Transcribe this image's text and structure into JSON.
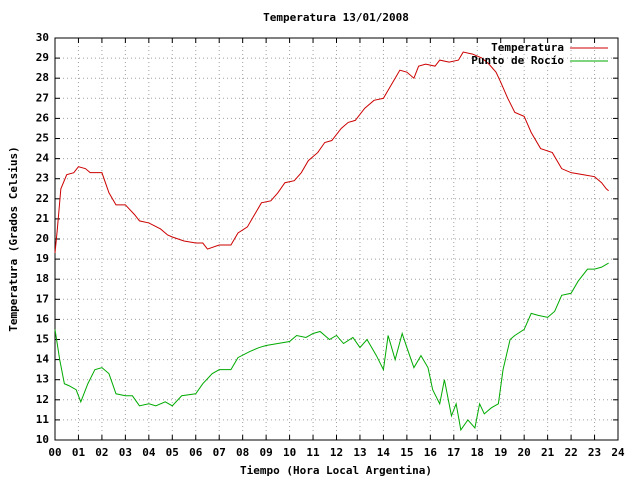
{
  "chart_data": {
    "type": "line",
    "title": "Temperatura 13/01/2008",
    "xlabel": "Tiempo (Hora Local Argentina)",
    "ylabel": "Temperatura (Grados Celsius)",
    "xlim": [
      0,
      24
    ],
    "ylim": [
      10,
      30
    ],
    "xticks": [
      {
        "value": 0,
        "label": "00"
      },
      {
        "value": 1,
        "label": "01"
      },
      {
        "value": 2,
        "label": "02"
      },
      {
        "value": 3,
        "label": "03"
      },
      {
        "value": 4,
        "label": "04"
      },
      {
        "value": 5,
        "label": "05"
      },
      {
        "value": 6,
        "label": "06"
      },
      {
        "value": 7,
        "label": "07"
      },
      {
        "value": 8,
        "label": "08"
      },
      {
        "value": 9,
        "label": "09"
      },
      10,
      11,
      12,
      13,
      14,
      15,
      16,
      17,
      18,
      19,
      20,
      21,
      22,
      23,
      24
    ],
    "yticks": [
      10,
      11,
      12,
      13,
      14,
      15,
      16,
      17,
      18,
      19,
      20,
      21,
      22,
      23,
      24,
      25,
      26,
      27,
      28,
      29,
      30
    ],
    "grid": true,
    "legend": "upper right",
    "series": [
      {
        "name": "Temperatura",
        "color": "#cc0000",
        "x": [
          0.0,
          0.1,
          0.25,
          0.5,
          0.8,
          1.0,
          1.3,
          1.5,
          2.0,
          2.3,
          2.6,
          3.0,
          3.4,
          3.6,
          4.0,
          4.5,
          4.8,
          5.0,
          5.5,
          6.0,
          6.3,
          6.5,
          7.0,
          7.5,
          7.8,
          8.2,
          8.5,
          8.8,
          9.2,
          9.5,
          9.8,
          10.2,
          10.5,
          10.8,
          11.2,
          11.5,
          11.8,
          12.2,
          12.5,
          12.8,
          13.2,
          13.6,
          14.0,
          14.2,
          14.5,
          14.7,
          15.0,
          15.3,
          15.5,
          15.8,
          16.2,
          16.4,
          16.8,
          17.2,
          17.4,
          17.8,
          18.2,
          18.5,
          18.8,
          19.0,
          19.3,
          19.6,
          20.0,
          20.3,
          20.7,
          21.2,
          21.6,
          22.0,
          22.5,
          23.0,
          23.3,
          23.5,
          23.6
        ],
        "values": [
          19.3,
          20.5,
          22.5,
          23.2,
          23.3,
          23.6,
          23.5,
          23.3,
          23.3,
          22.3,
          21.7,
          21.7,
          21.2,
          20.9,
          20.8,
          20.5,
          20.2,
          20.1,
          19.9,
          19.8,
          19.8,
          19.5,
          19.7,
          19.7,
          20.3,
          20.6,
          21.2,
          21.8,
          21.9,
          22.3,
          22.8,
          22.9,
          23.3,
          23.9,
          24.3,
          24.8,
          24.9,
          25.5,
          25.8,
          25.9,
          26.5,
          26.9,
          27.0,
          27.4,
          28.0,
          28.4,
          28.3,
          28.0,
          28.6,
          28.7,
          28.6,
          28.9,
          28.8,
          28.9,
          29.3,
          29.2,
          29.0,
          28.7,
          28.3,
          27.8,
          27.0,
          26.3,
          26.1,
          25.3,
          24.5,
          24.3,
          23.5,
          23.3,
          23.2,
          23.1,
          22.8,
          22.5,
          22.4
        ]
      },
      {
        "name": "Punto de Rocío",
        "color": "#00aa00",
        "x": [
          0.0,
          0.2,
          0.4,
          0.6,
          0.9,
          1.1,
          1.4,
          1.7,
          2.0,
          2.3,
          2.6,
          3.0,
          3.3,
          3.6,
          4.0,
          4.3,
          4.7,
          5.0,
          5.4,
          6.0,
          6.3,
          6.7,
          7.0,
          7.5,
          7.8,
          8.3,
          8.7,
          9.0,
          9.5,
          10.0,
          10.3,
          10.7,
          11.0,
          11.3,
          11.7,
          12.0,
          12.3,
          12.7,
          13.0,
          13.3,
          13.7,
          14.0,
          14.2,
          14.5,
          14.8,
          15.0,
          15.3,
          15.6,
          15.9,
          16.1,
          16.4,
          16.6,
          16.9,
          17.1,
          17.3,
          17.6,
          17.9,
          18.1,
          18.3,
          18.6,
          18.9,
          19.1,
          19.4,
          19.6,
          20.0,
          20.3,
          20.6,
          21.0,
          21.3,
          21.6,
          22.0,
          22.3,
          22.7,
          23.0,
          23.3,
          23.6
        ],
        "values": [
          15.5,
          14.0,
          12.8,
          12.7,
          12.5,
          11.9,
          12.8,
          13.5,
          13.6,
          13.3,
          12.3,
          12.2,
          12.2,
          11.7,
          11.8,
          11.7,
          11.9,
          11.7,
          12.2,
          12.3,
          12.8,
          13.3,
          13.5,
          13.5,
          14.1,
          14.4,
          14.6,
          14.7,
          14.8,
          14.9,
          15.2,
          15.1,
          15.3,
          15.4,
          15.0,
          15.2,
          14.8,
          15.1,
          14.6,
          15.0,
          14.2,
          13.5,
          15.2,
          14.0,
          15.3,
          14.6,
          13.6,
          14.2,
          13.6,
          12.5,
          11.8,
          13.0,
          11.2,
          11.8,
          10.5,
          11.0,
          10.6,
          11.8,
          11.3,
          11.6,
          11.8,
          13.5,
          15.0,
          15.2,
          15.5,
          16.3,
          16.2,
          16.1,
          16.4,
          17.2,
          17.3,
          17.9,
          18.5,
          18.5,
          18.6,
          18.8
        ]
      }
    ]
  }
}
